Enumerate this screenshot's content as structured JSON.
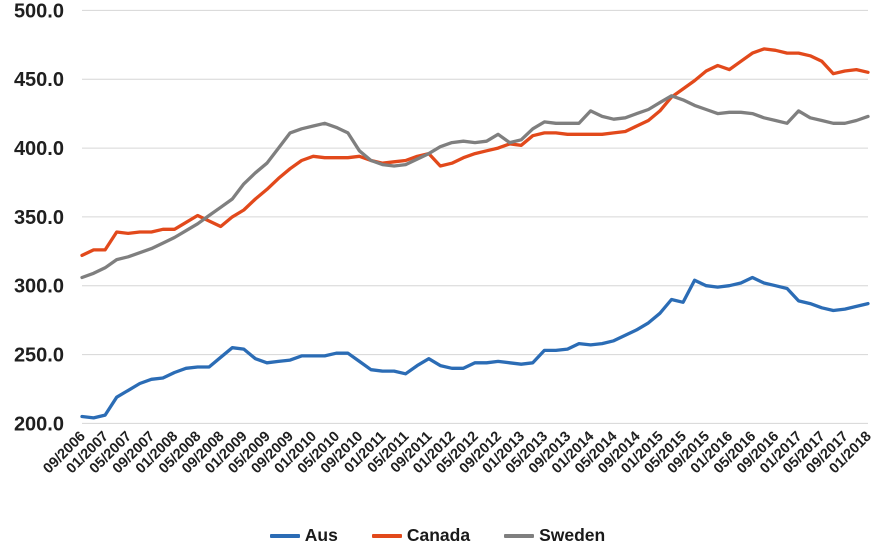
{
  "chart_data": {
    "type": "line",
    "title": "",
    "x_axis": {
      "tick_labels": [
        "09/2006",
        "01/2007",
        "05/2007",
        "09/2007",
        "01/2008",
        "05/2008",
        "09/2008",
        "01/2009",
        "05/2009",
        "09/2009",
        "01/2010",
        "05/2010",
        "09/2010",
        "01/2011",
        "05/2011",
        "09/2011",
        "01/2012",
        "05/2012",
        "09/2012",
        "01/2013",
        "05/2013",
        "09/2013",
        "01/2014",
        "05/2014",
        "09/2014",
        "01/2015",
        "05/2015",
        "09/2015",
        "01/2016",
        "05/2016",
        "09/2016",
        "01/2017",
        "05/2017",
        "09/2017",
        "01/2018"
      ],
      "data_points_per_label_interval": 2,
      "label_rotation_deg": -45
    },
    "y_axis": {
      "min": 200,
      "max": 500,
      "tick_step": 50,
      "tick_labels": [
        "200.0",
        "250.0",
        "300.0",
        "350.0",
        "400.0",
        "450.0",
        "500.0"
      ]
    },
    "grid": "horizontal",
    "gridline_color": "#d6d6d6",
    "legend_position": "bottom",
    "series": [
      {
        "name": "Aus",
        "color": "#2b6cb5",
        "values": [
          205,
          204,
          206,
          219,
          224,
          229,
          232,
          233,
          237,
          240,
          241,
          241,
          248,
          255,
          254,
          247,
          244,
          245,
          246,
          249,
          249,
          249,
          251,
          251,
          245,
          239,
          238,
          238,
          236,
          242,
          247,
          242,
          240,
          240,
          244,
          244,
          245,
          244,
          243,
          244,
          253,
          253,
          254,
          258,
          257,
          258,
          260,
          264,
          268,
          273,
          280,
          290,
          288,
          304,
          300,
          299,
          300,
          302,
          306,
          302,
          300,
          298,
          289,
          287,
          284,
          282,
          283,
          285,
          287
        ]
      },
      {
        "name": "Canada",
        "color": "#e2491b",
        "values": [
          322,
          326,
          326,
          339,
          338,
          339,
          339,
          341,
          341,
          346,
          351,
          347,
          343,
          350,
          355,
          363,
          370,
          378,
          385,
          391,
          394,
          393,
          393,
          393,
          394,
          391,
          389,
          390,
          391,
          394,
          396,
          387,
          389,
          393,
          396,
          398,
          400,
          403,
          402,
          409,
          411,
          411,
          410,
          410,
          410,
          410,
          411,
          412,
          416,
          420,
          427,
          437,
          443,
          449,
          456,
          460,
          457,
          463,
          469,
          472,
          471,
          469,
          469,
          467,
          463,
          454,
          456,
          457,
          455
        ]
      },
      {
        "name": "Sweden",
        "color": "#7f7f7f",
        "values": [
          306,
          309,
          313,
          319,
          321,
          324,
          327,
          331,
          335,
          340,
          345,
          351,
          357,
          363,
          374,
          382,
          389,
          400,
          411,
          414,
          416,
          418,
          415,
          411,
          398,
          391,
          388,
          387,
          388,
          392,
          396,
          401,
          404,
          405,
          404,
          405,
          410,
          404,
          406,
          414,
          419,
          418,
          418,
          418,
          427,
          423,
          421,
          422,
          425,
          428,
          433,
          438,
          435,
          431,
          428,
          425,
          426,
          426,
          425,
          422,
          420,
          418,
          427,
          422,
          420,
          418,
          418,
          420,
          423
        ]
      }
    ]
  }
}
